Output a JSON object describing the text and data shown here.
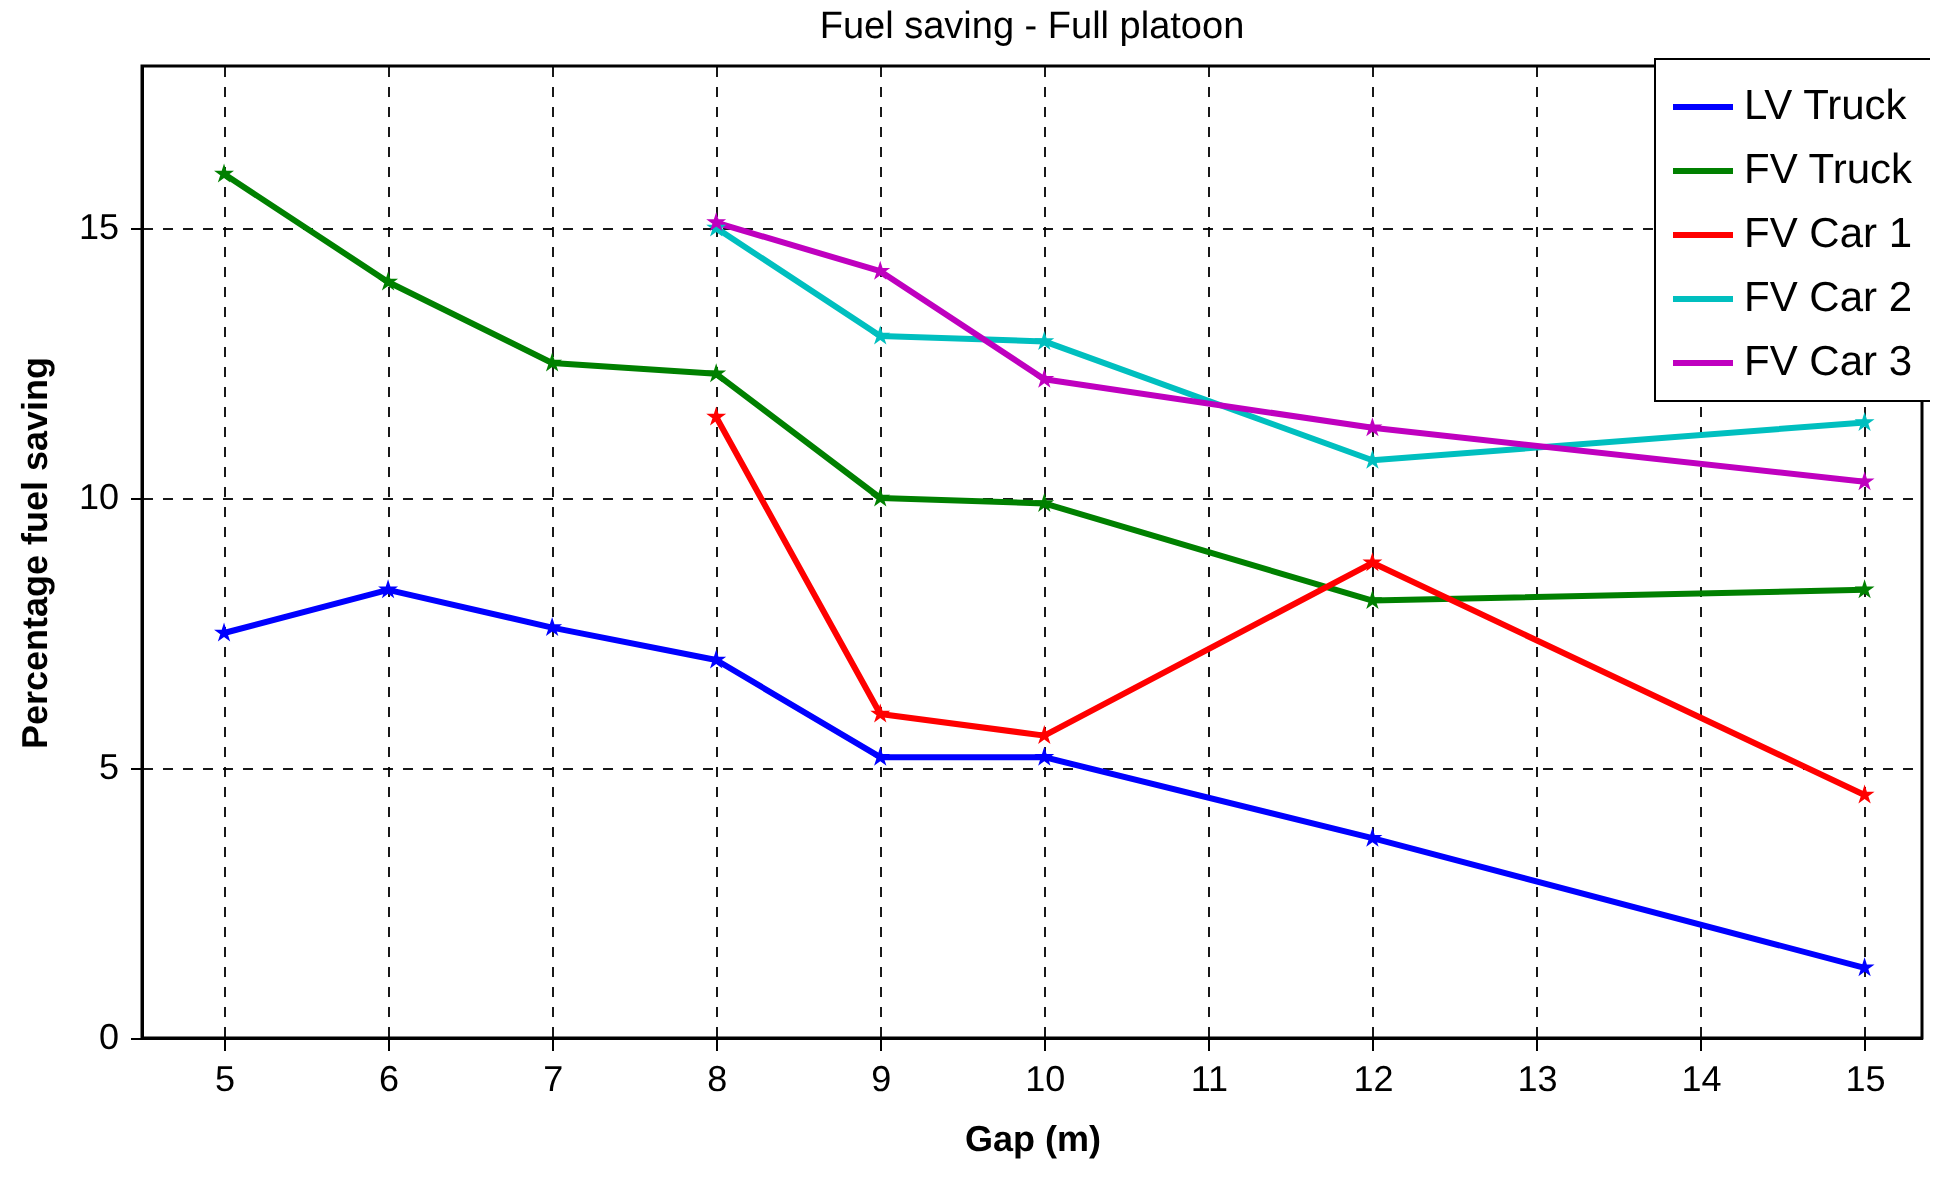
{
  "chart_data": {
    "type": "line",
    "title": "Fuel saving - Full platoon",
    "xlabel": "Gap (m)",
    "ylabel": "Percentage fuel saving",
    "xlim": [
      4.5,
      15.35
    ],
    "xticks": [
      5,
      6,
      7,
      8,
      9,
      10,
      11,
      12,
      13,
      14,
      15
    ],
    "ylim": [
      0,
      18
    ],
    "yticks": [
      0,
      5,
      10,
      15
    ],
    "grid": true,
    "legend": "top right",
    "marker": "star",
    "line_style": "solid",
    "series": [
      {
        "name": "LV Truck",
        "color": "#0000ff",
        "x": [
          5,
          6,
          7,
          8,
          9,
          10,
          12,
          15
        ],
        "values": [
          7.5,
          8.3,
          7.6,
          7.0,
          5.2,
          5.2,
          3.7,
          1.3
        ]
      },
      {
        "name": "FV Truck",
        "color": "#008000",
        "x": [
          5,
          6,
          7,
          8,
          9,
          10,
          12,
          15
        ],
        "values": [
          16.0,
          14.0,
          12.5,
          12.3,
          10.0,
          9.9,
          8.1,
          8.3
        ]
      },
      {
        "name": "FV Car 1",
        "color": "#ff0000",
        "x": [
          8,
          9,
          10,
          12,
          15
        ],
        "values": [
          11.5,
          6.0,
          5.6,
          8.8,
          4.5
        ]
      },
      {
        "name": "FV Car 2",
        "color": "#00bfbf",
        "x": [
          8,
          9,
          10,
          12,
          15
        ],
        "values": [
          15.0,
          13.0,
          12.9,
          10.7,
          11.4
        ]
      },
      {
        "name": "FV Car 3",
        "color": "#bf00bf",
        "x": [
          8,
          9,
          10,
          12,
          15
        ],
        "values": [
          15.1,
          14.2,
          12.2,
          11.3,
          10.3
        ]
      }
    ]
  }
}
